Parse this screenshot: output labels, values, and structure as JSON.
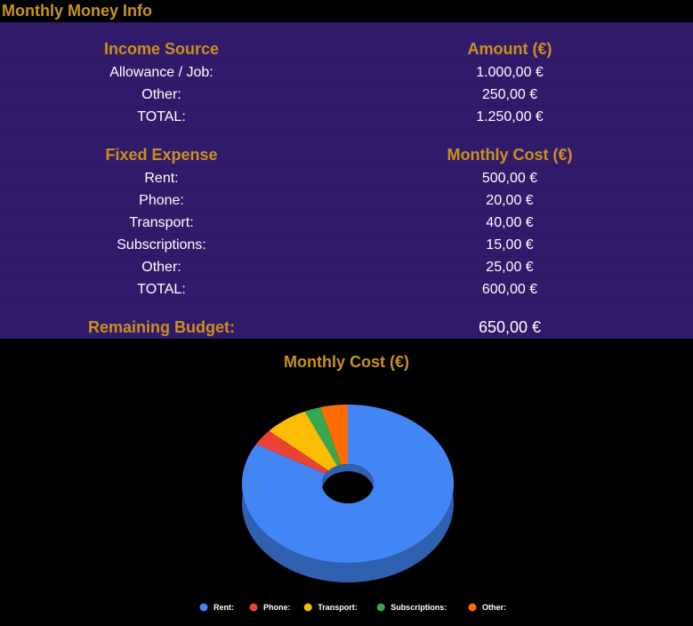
{
  "title": "Monthly Money Info",
  "income": {
    "header_source": "Income Source",
    "header_amount": "Amount (€)",
    "rows": [
      {
        "label": "Allowance / Job:",
        "value": "1.000,00 €"
      },
      {
        "label": "Other:",
        "value": "250,00 €"
      },
      {
        "label": "TOTAL:",
        "value": "1.250,00 €"
      }
    ]
  },
  "expenses": {
    "header_expense": "Fixed Expense",
    "header_cost": "Monthly Cost (€)",
    "rows": [
      {
        "label": "Rent:",
        "value": "500,00 €"
      },
      {
        "label": "Phone:",
        "value": "20,00 €"
      },
      {
        "label": "Transport:",
        "value": "40,00 €"
      },
      {
        "label": "Subscriptions:",
        "value": "15,00 €"
      },
      {
        "label": "Other:",
        "value": "25,00 €"
      },
      {
        "label": "TOTAL:",
        "value": "600,00 €"
      }
    ]
  },
  "remaining": {
    "label": "Remaining Budget:",
    "value": "650,00 €"
  },
  "chart_data": {
    "type": "pie",
    "title": "Monthly Cost (€)",
    "categories": [
      "Rent:",
      "Phone:",
      "Transport:",
      "Subscriptions:",
      "Other:"
    ],
    "values": [
      500,
      20,
      40,
      15,
      25
    ],
    "colors": [
      "#4285f4",
      "#ea4335",
      "#fbbc04",
      "#34a853",
      "#ff6d01"
    ],
    "donut": true,
    "three_d": true,
    "legend_position": "bottom"
  }
}
